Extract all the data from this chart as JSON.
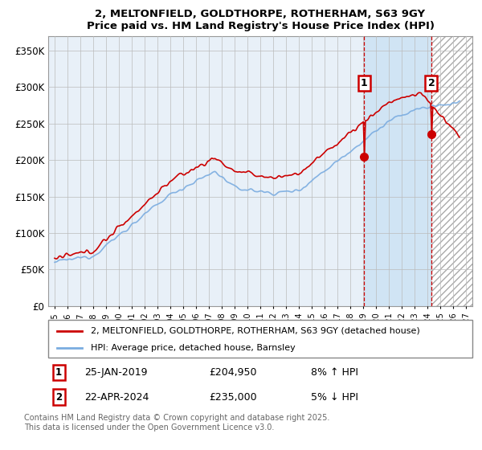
{
  "title": "2, MELTONFIELD, GOLDTHORPE, ROTHERHAM, S63 9GY",
  "subtitle": "Price paid vs. HM Land Registry's House Price Index (HPI)",
  "ylabel_ticks": [
    "£0",
    "£50K",
    "£100K",
    "£150K",
    "£200K",
    "£250K",
    "£300K",
    "£350K"
  ],
  "ytick_vals": [
    0,
    50000,
    100000,
    150000,
    200000,
    250000,
    300000,
    350000
  ],
  "ylim": [
    0,
    370000
  ],
  "xlim_start": 1994.5,
  "xlim_end": 2027.5,
  "hpi_color": "#7aace0",
  "price_color": "#cc0000",
  "bg_color": "#dce8f5",
  "shade_between_color": "#dce8f5",
  "grid_color": "#bbbbbb",
  "marker1_year": 2019.07,
  "marker2_year": 2024.31,
  "marker1_price": 204950,
  "marker2_price": 235000,
  "legend_label1": "2, MELTONFIELD, GOLDTHORPE, ROTHERHAM, S63 9GY (detached house)",
  "legend_label2": "HPI: Average price, detached house, Barnsley",
  "note1_num": "1",
  "note1_date": "25-JAN-2019",
  "note1_price": "£204,950",
  "note1_hpi": "8% ↑ HPI",
  "note2_num": "2",
  "note2_date": "22-APR-2024",
  "note2_price": "£235,000",
  "note2_hpi": "5% ↓ HPI",
  "footer": "Contains HM Land Registry data © Crown copyright and database right 2025.\nThis data is licensed under the Open Government Licence v3.0.",
  "num_box_color": "#cc0000",
  "hatch_color": "#aaaaaa"
}
